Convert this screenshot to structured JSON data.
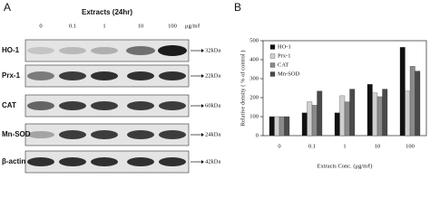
{
  "blot": {
    "panel_label": "A",
    "title": "Extracts (24hr)",
    "lanes": [
      "0",
      "0.1",
      "1",
      "10",
      "100"
    ],
    "unit": "μg/mℓ",
    "rows": [
      {
        "label": "HO-1",
        "kda": "32kDa"
      },
      {
        "label": "Prx-1",
        "kda": "22kDa"
      },
      {
        "label": "CAT",
        "kda": "60kDa"
      },
      {
        "label": "Mn-SOD",
        "kda": "24kDa"
      },
      {
        "label": "β-actin",
        "kda": "42kDa"
      }
    ]
  },
  "chart_data": {
    "type": "bar",
    "panel_label": "B",
    "ylabel": "Relative density ( % of control )",
    "xlabel": "Extracts Conc. (μg/mℓ)",
    "categories": [
      "0",
      "0.1",
      "1",
      "10",
      "100"
    ],
    "series": [
      {
        "name": "HO-1",
        "color": "#111111",
        "values": [
          100,
          120,
          120,
          270,
          465
        ]
      },
      {
        "name": "Prx-1",
        "color": "#cfcfcf",
        "values": [
          100,
          178,
          210,
          225,
          235
        ]
      },
      {
        "name": "CAT",
        "color": "#8a8a8a",
        "values": [
          100,
          160,
          178,
          205,
          365
        ]
      },
      {
        "name": "Mn-SOD",
        "color": "#4a4a4a",
        "values": [
          100,
          235,
          245,
          245,
          340
        ]
      }
    ],
    "ylim": [
      0,
      500
    ],
    "yticks": [
      0,
      100,
      200,
      300,
      400,
      500
    ],
    "legend": "upper-left"
  }
}
